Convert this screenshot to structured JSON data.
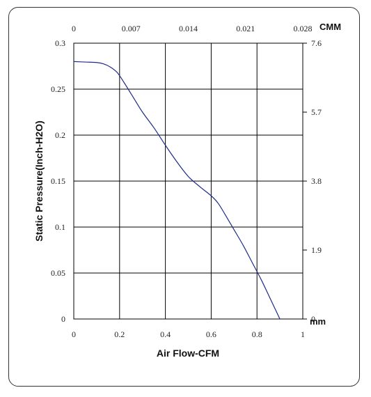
{
  "chart_data": {
    "type": "line",
    "title": "",
    "xlabel": "Air Flow-CFM",
    "ylabel": "Static Pressure(Inch-H2O)",
    "xlim": [
      0,
      1
    ],
    "ylim": [
      0,
      0.3
    ],
    "x_ticks": [
      "0",
      "0.2",
      "0.4",
      "0.6",
      "0.8",
      "1"
    ],
    "y_ticks": [
      "0",
      "0.05",
      "0.1",
      "0.15",
      "0.2",
      "0.25",
      "0.3"
    ],
    "top_axis": {
      "unit": "CMM",
      "ticks": [
        "0",
        "0.007",
        "0.014",
        "0.021",
        "0.028"
      ]
    },
    "right_axis": {
      "unit": "mm",
      "ticks": [
        "0",
        "1.9",
        "3.8",
        "5.7",
        "7.6"
      ]
    },
    "grid": true,
    "line_color": "#1c2a8a",
    "series": [
      {
        "x": [
          0,
          0.05,
          0.1,
          0.13,
          0.16,
          0.19,
          0.22,
          0.26,
          0.3,
          0.35,
          0.4,
          0.45,
          0.5,
          0.55,
          0.6,
          0.63,
          0.66,
          0.7,
          0.74,
          0.78,
          0.82,
          0.86,
          0.9
        ],
        "y": [
          0.28,
          0.2795,
          0.279,
          0.2775,
          0.274,
          0.268,
          0.257,
          0.241,
          0.225,
          0.208,
          0.189,
          0.171,
          0.155,
          0.144,
          0.134,
          0.126,
          0.114,
          0.097,
          0.08,
          0.061,
          0.042,
          0.021,
          0
        ]
      }
    ]
  }
}
